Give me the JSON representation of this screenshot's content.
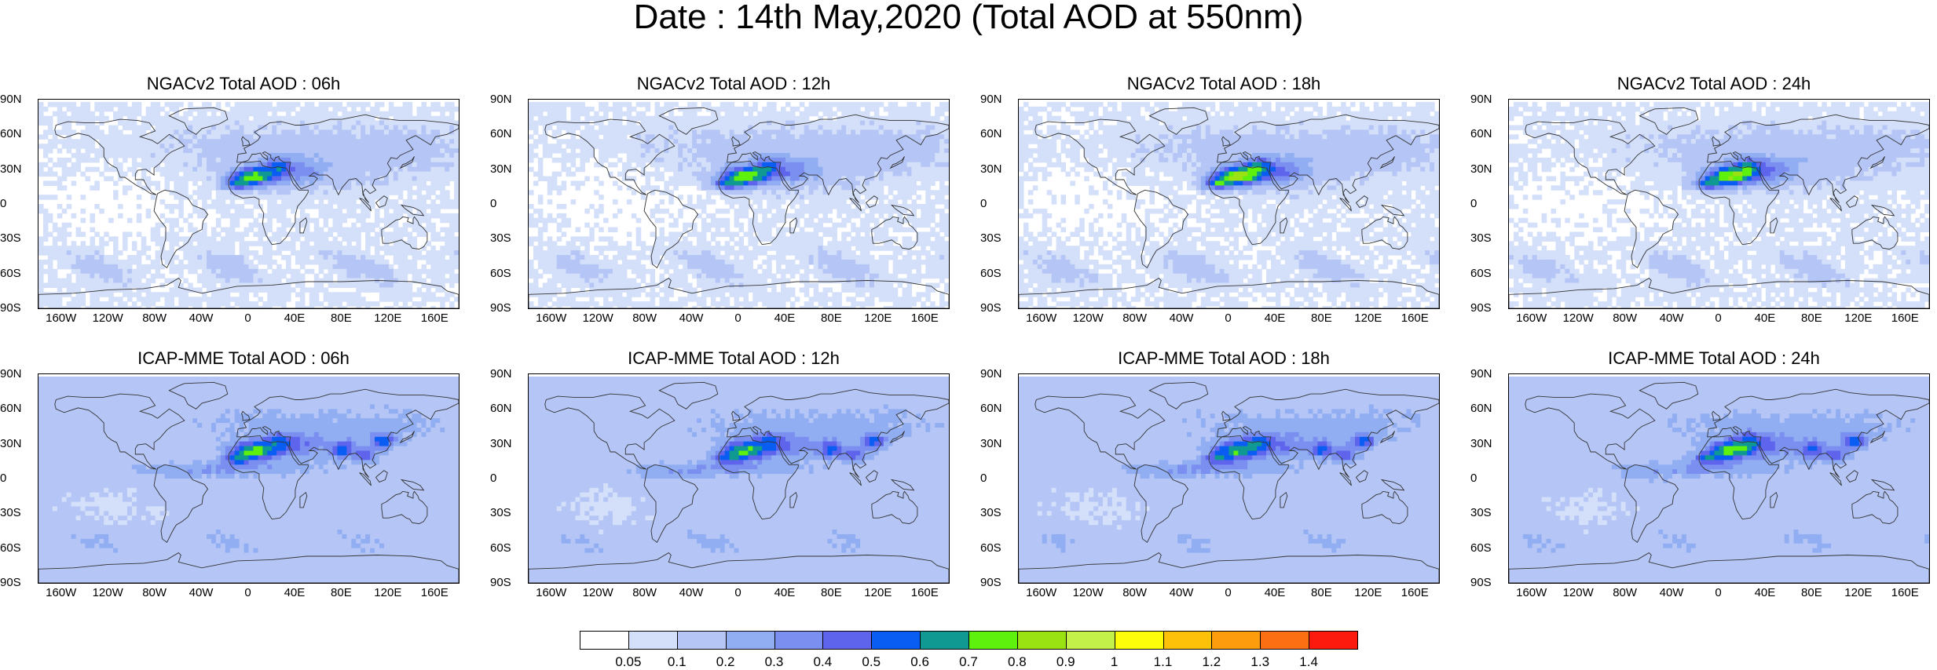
{
  "title": "Date : 14th May,2020 (Total AOD at 550nm)",
  "lat_ticks": [
    "90N",
    "60N",
    "30N",
    "0",
    "30S",
    "60S",
    "90S"
  ],
  "lon_ticks": [
    "160W",
    "120W",
    "80W",
    "40W",
    "0",
    "40E",
    "80E",
    "120E",
    "160E"
  ],
  "panels": [
    {
      "title": "NGACv2 Total AOD : 06h",
      "model": "NGACv2",
      "hour": "06h",
      "dust_intensity": 0.85,
      "dust_offset": 0
    },
    {
      "title": "NGACv2 Total AOD : 12h",
      "model": "NGACv2",
      "hour": "12h",
      "dust_intensity": 0.9,
      "dust_offset": 1
    },
    {
      "title": "NGACv2 Total AOD : 18h",
      "model": "NGACv2",
      "hour": "18h",
      "dust_intensity": 1.0,
      "dust_offset": 2
    },
    {
      "title": "NGACv2 Total AOD : 24h",
      "model": "NGACv2",
      "hour": "24h",
      "dust_intensity": 0.95,
      "dust_offset": 3
    },
    {
      "title": "ICAP-MME Total AOD : 06h",
      "model": "ICAP-MME",
      "hour": "06h",
      "dust_intensity": 0.75,
      "dust_offset": 0
    },
    {
      "title": "ICAP-MME Total AOD : 12h",
      "model": "ICAP-MME",
      "hour": "12h",
      "dust_intensity": 0.7,
      "dust_offset": 1
    },
    {
      "title": "ICAP-MME Total AOD : 18h",
      "model": "ICAP-MME",
      "hour": "18h",
      "dust_intensity": 0.7,
      "dust_offset": 2
    },
    {
      "title": "ICAP-MME Total AOD : 24h",
      "model": "ICAP-MME",
      "hour": "24h",
      "dust_intensity": 0.75,
      "dust_offset": 3
    }
  ],
  "colorbar": {
    "labels": [
      "0.05",
      "0.1",
      "0.2",
      "0.3",
      "0.4",
      "0.5",
      "0.6",
      "0.7",
      "0.8",
      "0.9",
      "1",
      "1.1",
      "1.2",
      "1.3",
      "1.4"
    ],
    "colors": [
      "#ffffff",
      "#d4e0fa",
      "#b5c6f6",
      "#92aef2",
      "#7b8ff0",
      "#5e64ec",
      "#0a5df3",
      "#0f9992",
      "#5ef10e",
      "#9ae212",
      "#c4f04a",
      "#fdfd0a",
      "#fdc10a",
      "#fd9d0e",
      "#fc6f12",
      "#fc1a0f"
    ]
  },
  "continent_outline_color": "#333333"
}
